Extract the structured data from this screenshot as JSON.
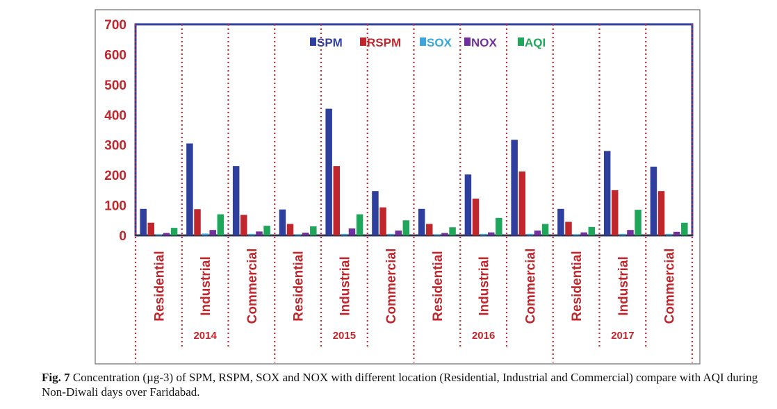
{
  "chart_data": {
    "type": "bar",
    "groups": [
      {
        "year": "2014",
        "categories": [
          "Residential",
          "Industrial",
          "Commercial"
        ]
      },
      {
        "year": "2015",
        "categories": [
          "Residential",
          "Industrial",
          "Commercial"
        ]
      },
      {
        "year": "2016",
        "categories": [
          "Residential",
          "Industrial",
          "Commercial"
        ]
      },
      {
        "year": "2017",
        "categories": [
          "Residential",
          "Industrial",
          "Commercial"
        ]
      }
    ],
    "series": [
      {
        "name": "SPM",
        "color": "#2e3f9e",
        "values": [
          88,
          305,
          230,
          86,
          420,
          147,
          88,
          202,
          317,
          88,
          280,
          228
        ]
      },
      {
        "name": "RSPM",
        "color": "#c0272d",
        "values": [
          42,
          87,
          68,
          38,
          230,
          93,
          38,
          122,
          212,
          45,
          150,
          147
        ]
      },
      {
        "name": "SOX",
        "color": "#3aa6dd",
        "values": [
          4,
          6,
          5,
          4,
          5,
          5,
          4,
          5,
          5,
          4,
          5,
          5
        ]
      },
      {
        "name": "NOX",
        "color": "#7030a0",
        "values": [
          8,
          18,
          13,
          9,
          23,
          16,
          8,
          10,
          16,
          10,
          18,
          12
        ]
      },
      {
        "name": "AQI",
        "color": "#1fa65a",
        "values": [
          25,
          70,
          32,
          30,
          70,
          50,
          27,
          58,
          38,
          28,
          85,
          42
        ]
      }
    ],
    "yticks": [
      0,
      100,
      200,
      300,
      400,
      500,
      600,
      700
    ],
    "ylim": [
      0,
      700
    ],
    "legend_position": "top-center",
    "title": "",
    "xlabel": "",
    "ylabel": ""
  },
  "caption": {
    "label": "Fig. 7",
    "text": "Concentration (µg-3) of SPM, RSPM, SOX and NOX with different location (Residential, Industrial and Commercial) compare with AQI during Non-Diwali days over Faridabad."
  }
}
